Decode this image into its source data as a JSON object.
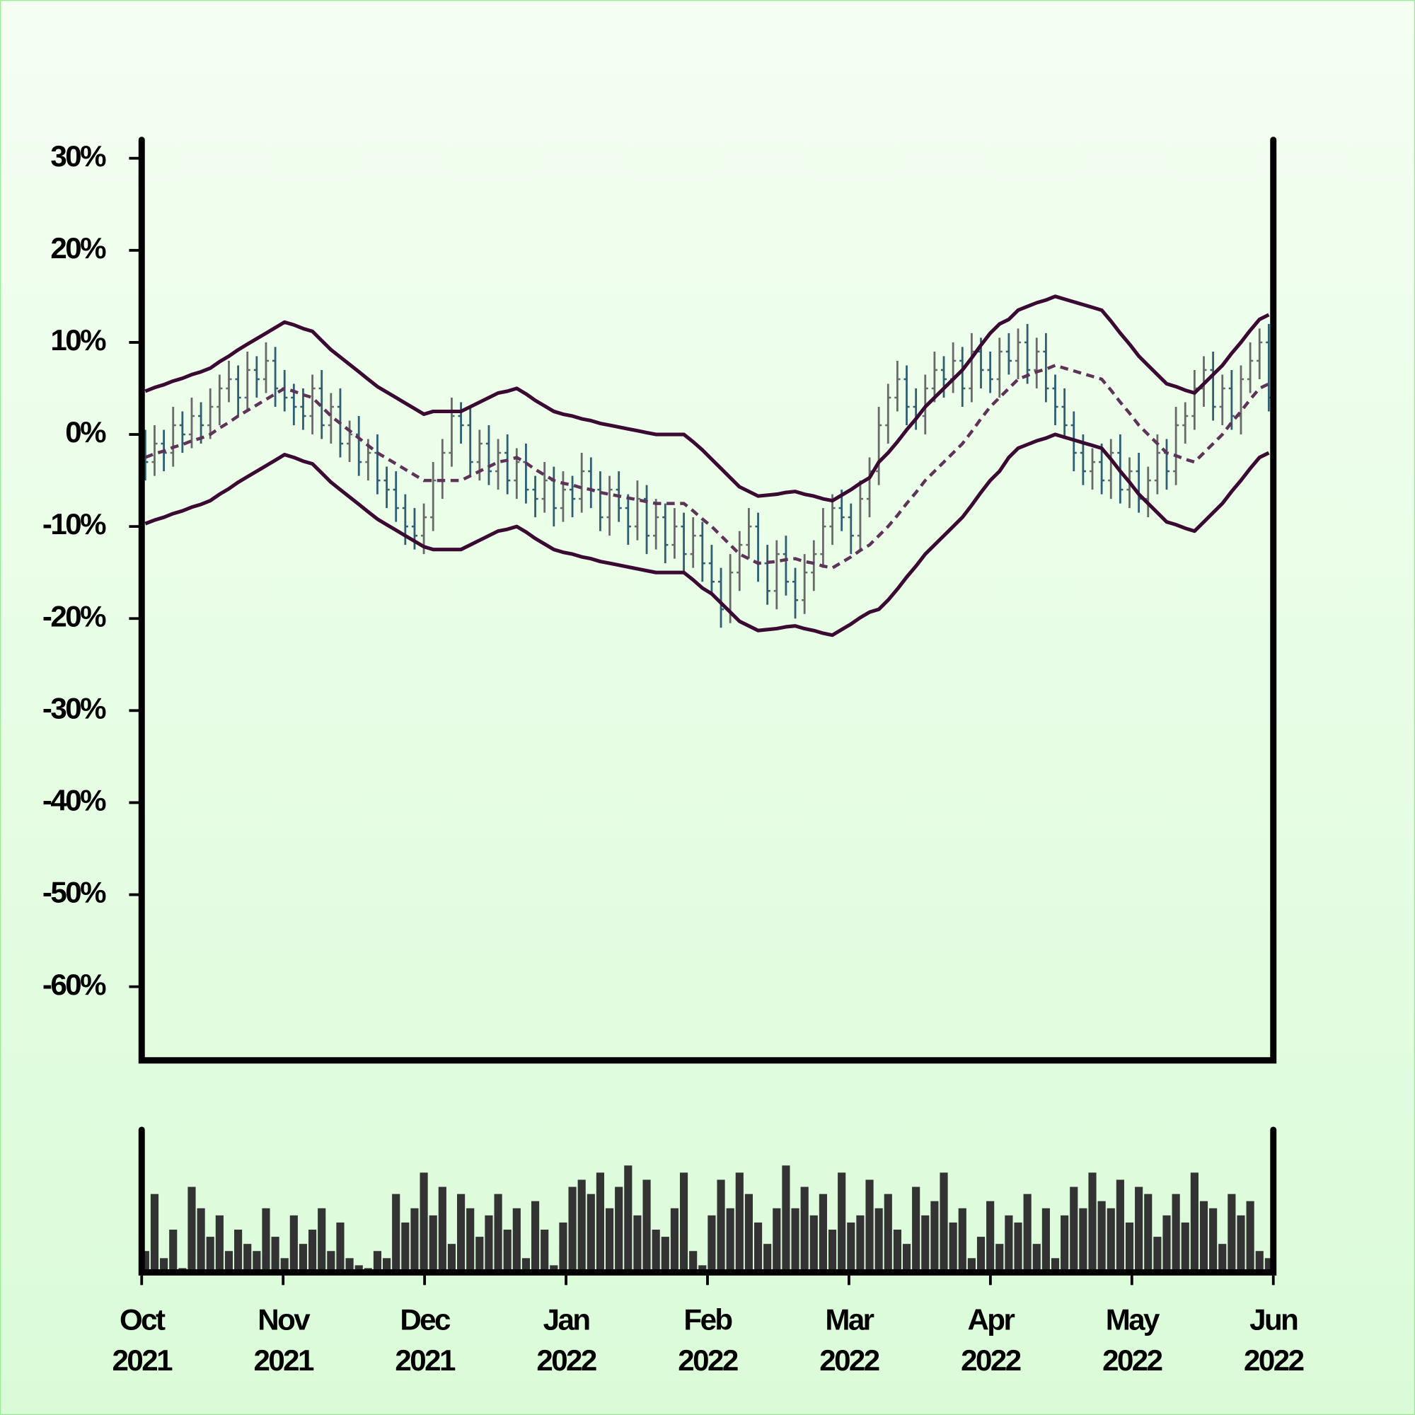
{
  "chart_data": {
    "type": "ohlc",
    "x_labels": [
      [
        "Oct",
        "2021"
      ],
      [
        "Nov",
        "2021"
      ],
      [
        "Dec",
        "2021"
      ],
      [
        "Jan",
        "2022"
      ],
      [
        "Feb",
        "2022"
      ],
      [
        "Mar",
        "2022"
      ],
      [
        "Apr",
        "2022"
      ],
      [
        "May",
        "2022"
      ],
      [
        "Jun",
        "2022"
      ]
    ],
    "ylim": [
      -68,
      32
    ],
    "yticks": [
      {
        "value": 30,
        "label": "30%"
      },
      {
        "value": 20,
        "label": "20%"
      },
      {
        "value": 10,
        "label": "10%"
      },
      {
        "value": 0,
        "label": "0%"
      },
      {
        "value": -10,
        "label": "-10%"
      },
      {
        "value": -20,
        "label": "-20%"
      },
      {
        "value": -30,
        "label": "-30%"
      },
      {
        "value": -40,
        "label": "-40%"
      },
      {
        "value": -50,
        "label": "-50%"
      },
      {
        "value": -60,
        "label": "-60%"
      }
    ],
    "up_color": "#6a6a6a",
    "down_color": "#2f5f70",
    "open": [
      -1,
      -3,
      -1,
      -2,
      1,
      0,
      2,
      1,
      3,
      5,
      6,
      4,
      7,
      6,
      8,
      5,
      4,
      3,
      2,
      5,
      1,
      3,
      -1,
      0,
      -3,
      -2,
      -5,
      -6,
      -8,
      -10,
      -11,
      -9,
      -5,
      -2,
      2,
      1,
      -3,
      -1,
      -4,
      -2,
      -5,
      -3,
      -6,
      -7,
      -5,
      -8,
      -6,
      -7,
      -4,
      -6,
      -9,
      -6,
      -8,
      -10,
      -7,
      -11,
      -9,
      -12,
      -10,
      -13,
      -11,
      -14,
      -16,
      -19,
      -15,
      -12,
      -10,
      -14,
      -17,
      -13,
      -16,
      -18,
      -15,
      -13,
      -10,
      -8,
      -9,
      -11,
      -7,
      -4,
      1,
      4,
      6,
      3,
      2,
      5,
      7,
      6,
      8,
      5,
      9,
      7,
      6,
      9,
      8,
      10,
      7,
      9,
      5,
      3,
      1,
      -2,
      -4,
      -3,
      -5,
      -2,
      -6,
      -4,
      -7,
      -5,
      -2,
      -4,
      1,
      2,
      5,
      7,
      3,
      5,
      2,
      6,
      8,
      10
    ],
    "high": [
      0.5,
      1,
      0.5,
      3,
      2.5,
      4,
      3.5,
      5,
      6.5,
      8,
      7.5,
      9,
      8.5,
      10,
      9.5,
      7,
      5.5,
      5,
      6.5,
      7,
      4.5,
      5,
      1.5,
      2,
      -0.5,
      0,
      -3.5,
      -4,
      -6.5,
      -8,
      -7.5,
      -3,
      -0.5,
      4,
      3.5,
      3,
      0.5,
      1,
      -0.5,
      0,
      -1.5,
      -1,
      -4.5,
      -3,
      -3.5,
      -4,
      -4.5,
      -2,
      -2.5,
      -4,
      -4.5,
      -4,
      -6.5,
      -5,
      -5.5,
      -7,
      -7.5,
      -8,
      -8.5,
      -9,
      -9.5,
      -12,
      -14.5,
      -13,
      -10.5,
      -8,
      -8.5,
      -12,
      -11.5,
      -11,
      -14.5,
      -13,
      -11.5,
      -8,
      -6.5,
      -6,
      -7.5,
      -5,
      -2.5,
      3,
      5.5,
      8,
      7.5,
      5,
      6.5,
      9,
      8.5,
      10,
      9.5,
      11,
      10.5,
      9,
      10.5,
      11,
      11.5,
      12,
      10.5,
      11,
      6.5,
      5,
      2.5,
      0,
      -1.5,
      -1,
      -0.5,
      0,
      -2.5,
      -2,
      -3.5,
      0,
      -0.5,
      3,
      3.5,
      7,
      8.5,
      9,
      6.5,
      7,
      7.5,
      10,
      11.5,
      12
    ],
    "low": [
      -5,
      -4.5,
      -4,
      -3.5,
      -2,
      -1.5,
      -1,
      -0.5,
      1,
      3.5,
      2,
      2.5,
      4,
      4.5,
      3,
      2.5,
      1,
      0.5,
      0,
      -0.5,
      -1,
      -2.5,
      -3,
      -4.5,
      -5,
      -6.5,
      -8,
      -9.5,
      -12,
      -12.5,
      -13,
      -10.5,
      -7,
      -3.5,
      -1,
      -4.5,
      -5,
      -5.5,
      -6,
      -6.5,
      -7,
      -7.5,
      -9,
      -8.5,
      -10,
      -9.5,
      -9,
      -8.5,
      -8,
      -10.5,
      -11,
      -9.5,
      -12,
      -11.5,
      -13,
      -12.5,
      -14,
      -13.5,
      -15,
      -14.5,
      -16,
      -17.5,
      -21,
      -20.5,
      -17,
      -13.5,
      -16,
      -18.5,
      -19,
      -17.5,
      -20,
      -19.5,
      -17,
      -14.5,
      -12,
      -10.5,
      -13,
      -12.5,
      -9,
      -5.5,
      -1,
      2.5,
      1,
      0.5,
      0,
      3.5,
      4,
      4.5,
      3,
      3.5,
      5,
      4.5,
      4,
      6.5,
      6,
      5.5,
      5,
      3.5,
      1,
      -0.5,
      -4,
      -5.5,
      -6,
      -6.5,
      -7,
      -7.5,
      -8,
      -8.5,
      -9,
      -6.5,
      -6,
      -5.5,
      -1,
      0.5,
      3,
      1.5,
      1,
      0.5,
      0,
      4.5,
      6,
      2.5
    ],
    "close": [
      -3,
      -1,
      -2,
      1,
      0,
      2,
      1,
      3,
      5,
      6,
      4,
      7,
      6,
      8,
      5,
      4,
      3,
      2,
      5,
      1,
      3,
      -1,
      0,
      -3,
      -2,
      -5,
      -6,
      -8,
      -10,
      -11,
      -9,
      -5,
      -2,
      2,
      1,
      -3,
      -1,
      -4,
      -2,
      -5,
      -3,
      -6,
      -7,
      -5,
      -8,
      -6,
      -7,
      -4,
      -6,
      -9,
      -6,
      -8,
      -10,
      -7,
      -11,
      -9,
      -12,
      -10,
      -13,
      -11,
      -14,
      -16,
      -19,
      -15,
      -12,
      -10,
      -14,
      -17,
      -13,
      -16,
      -18,
      -15,
      -13,
      -10,
      -8,
      -9,
      -11,
      -7,
      -4,
      1,
      4,
      6,
      3,
      2,
      5,
      7,
      6,
      8,
      5,
      9,
      7,
      6,
      9,
      8,
      10,
      7,
      9,
      5,
      3,
      1,
      -2,
      -4,
      -3,
      -5,
      -2,
      -6,
      -4,
      -7,
      -5,
      -2,
      -4,
      1,
      2,
      5,
      7,
      3,
      5,
      2,
      6,
      8,
      10,
      4
    ],
    "bands": {
      "color": "#3b0a33",
      "middle_color": "#5e3358",
      "upper": [
        4.7,
        5.1,
        5.4,
        5.8,
        6.1,
        6.5,
        6.8,
        7.2,
        7.9,
        8.5,
        9.2,
        9.8,
        10.4,
        11,
        11.6,
        12.2,
        11.9,
        11.5,
        11.2,
        10.2,
        9.2,
        8.4,
        7.6,
        6.8,
        6,
        5.2,
        4.6,
        4,
        3.4,
        2.8,
        2.2,
        2.5,
        2.5,
        2.5,
        2.5,
        3,
        3.5,
        4,
        4.5,
        4.7,
        5,
        4.4,
        3.7,
        3.1,
        2.5,
        2.2,
        2,
        1.7,
        1.5,
        1.2,
        1,
        0.8,
        0.6,
        0.4,
        0.2,
        0,
        0,
        0,
        0,
        -0.8,
        -1.7,
        -2.7,
        -3.7,
        -4.7,
        -5.7,
        -6.2,
        -6.7,
        -6.6,
        -6.5,
        -6.3,
        -6.2,
        -6.5,
        -6.7,
        -7,
        -7.2,
        -6.6,
        -6,
        -5.3,
        -4.7,
        -3,
        -2,
        -0.8,
        0.5,
        1.7,
        3,
        4,
        5,
        6,
        7,
        8.3,
        9.7,
        11,
        12,
        12.5,
        13.5,
        13.9,
        14.3,
        14.6,
        15,
        14.7,
        14.4,
        14.1,
        13.8,
        13.5,
        12.3,
        11,
        9.8,
        8.5,
        7.5,
        6.5,
        5.5,
        5.2,
        4.8,
        4.5,
        5.5,
        6.5,
        7.5,
        8.8,
        10,
        11.3,
        12.5,
        13
      ],
      "middle": [
        -2.5,
        -2.1,
        -1.8,
        -1.4,
        -1.1,
        -0.7,
        -0.4,
        0,
        0.7,
        1.3,
        2,
        2.6,
        3.2,
        3.8,
        4.4,
        5,
        4.7,
        4.3,
        4,
        3,
        2,
        1.2,
        0.4,
        -0.4,
        -1.2,
        -2,
        -2.6,
        -3.2,
        -3.8,
        -4.4,
        -5,
        -5,
        -5,
        -5,
        -5,
        -4.5,
        -4,
        -3.5,
        -3,
        -2.8,
        -2.5,
        -3.1,
        -3.8,
        -4.4,
        -5,
        -5.3,
        -5.5,
        -5.8,
        -6,
        -6.3,
        -6.5,
        -6.7,
        -6.9,
        -7.1,
        -7.3,
        -7.5,
        -7.5,
        -7.5,
        -7.5,
        -8.3,
        -9.2,
        -10,
        -11,
        -12,
        -13,
        -13.5,
        -14,
        -13.9,
        -13.8,
        -13.6,
        -13.5,
        -13.8,
        -14,
        -14.3,
        -14.5,
        -13.9,
        -13.3,
        -12.6,
        -12,
        -11,
        -10,
        -8.8,
        -7.5,
        -6.3,
        -5,
        -4,
        -3,
        -2,
        -1,
        0.3,
        1.7,
        3,
        4,
        5,
        6,
        6.4,
        6.8,
        7.1,
        7.5,
        7.2,
        6.9,
        6.6,
        6.3,
        6,
        4.8,
        3.5,
        2.3,
        1,
        0,
        -1,
        -2,
        -2.3,
        -2.7,
        -3,
        -2,
        -1,
        0,
        1.3,
        2.5,
        3.8,
        5,
        5.5
      ],
      "lower": [
        -9.7,
        -9.3,
        -9,
        -8.6,
        -8.3,
        -7.9,
        -7.6,
        -7.2,
        -6.5,
        -5.9,
        -5.2,
        -4.6,
        -4,
        -3.4,
        -2.8,
        -2.2,
        -2.5,
        -2.9,
        -3.2,
        -4.2,
        -5.2,
        -6,
        -6.8,
        -7.6,
        -8.4,
        -9.2,
        -9.8,
        -10.4,
        -11,
        -11.6,
        -12.2,
        -12.5,
        -12.5,
        -12.5,
        -12.5,
        -12,
        -11.5,
        -11,
        -10.5,
        -10.3,
        -10,
        -10.6,
        -11.3,
        -11.9,
        -12.5,
        -12.8,
        -13,
        -13.3,
        -13.5,
        -13.8,
        -14,
        -14.2,
        -14.4,
        -14.6,
        -14.8,
        -15,
        -15,
        -15,
        -15,
        -15.8,
        -16.7,
        -17.3,
        -18.3,
        -19.3,
        -20.3,
        -20.8,
        -21.3,
        -21.2,
        -21.1,
        -20.9,
        -20.8,
        -21.1,
        -21.3,
        -21.6,
        -21.8,
        -21.2,
        -20.6,
        -19.9,
        -19.3,
        -19,
        -18,
        -16.8,
        -15.5,
        -14.3,
        -13,
        -12,
        -11,
        -10,
        -9,
        -7.7,
        -6.3,
        -5,
        -4,
        -2.5,
        -1.5,
        -1.1,
        -0.7,
        -0.4,
        0,
        -0.3,
        -0.6,
        -0.9,
        -1.2,
        -1.5,
        -2.7,
        -4,
        -5.2,
        -6.5,
        -7.5,
        -8.5,
        -9.5,
        -9.8,
        -10.2,
        -10.5,
        -9.5,
        -8.5,
        -7.5,
        -6.2,
        -5,
        -3.7,
        -2.5,
        -2
      ]
    },
    "volume": {
      "color": "#333333",
      "ylim": [
        0,
        100
      ],
      "values": [
        15,
        55,
        10,
        30,
        3,
        60,
        45,
        25,
        40,
        15,
        30,
        20,
        15,
        45,
        25,
        10,
        40,
        20,
        30,
        45,
        15,
        35,
        10,
        5,
        3,
        15,
        10,
        55,
        35,
        45,
        70,
        40,
        60,
        20,
        55,
        45,
        25,
        40,
        55,
        30,
        45,
        10,
        50,
        30,
        5,
        35,
        60,
        65,
        55,
        70,
        45,
        60,
        75,
        40,
        65,
        30,
        25,
        45,
        70,
        15,
        5,
        40,
        65,
        45,
        70,
        55,
        35,
        20,
        45,
        75,
        45,
        60,
        40,
        55,
        30,
        70,
        35,
        40,
        65,
        45,
        55,
        30,
        20,
        60,
        40,
        50,
        70,
        35,
        45,
        10,
        25,
        50,
        20,
        40,
        35,
        55,
        20,
        45,
        10,
        40,
        60,
        45,
        70,
        50,
        45,
        65,
        35,
        60,
        55,
        25,
        40,
        55,
        35,
        70,
        50,
        45,
        20,
        55,
        40,
        50,
        15,
        10
      ]
    }
  }
}
